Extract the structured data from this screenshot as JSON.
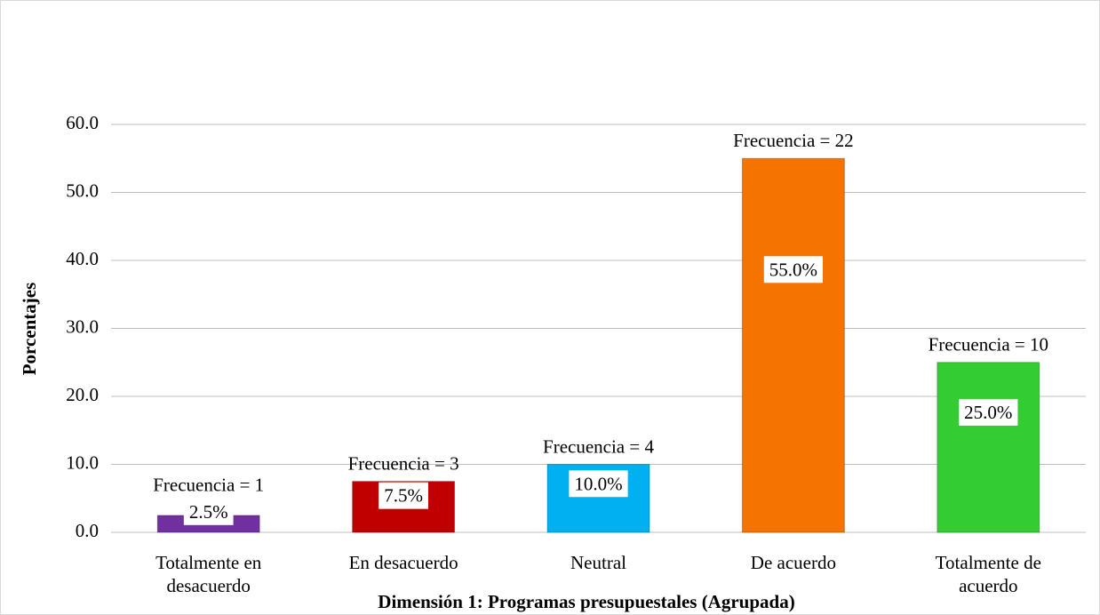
{
  "chart_data": {
    "type": "bar",
    "y_axis_label": "Porcentajes",
    "x_axis_label": "Dimensión 1: Programas presupuestales (Agrupada)",
    "categories": [
      "Totalmente en desacuerdo",
      "En desacuerdo",
      "Neutral",
      "De acuerdo",
      "Totalmente de acuerdo"
    ],
    "values": [
      2.5,
      7.5,
      10,
      55,
      25
    ],
    "value_labels": [
      "2.5%",
      "7.5%",
      "10.0%",
      "55.0%",
      "25.0%"
    ],
    "annotations": [
      "Frecuencia = 1",
      "Frecuencia = 3",
      "Frecuencia = 4",
      "Frecuencia = 22",
      "Frecuencia = 10"
    ],
    "colors": [
      "#7030a0",
      "#c00000",
      "#00b0f0",
      "#f57300",
      "#33cc33"
    ],
    "ylim": [
      0,
      60
    ],
    "yticks": [
      {
        "value": 0,
        "label": "0.0"
      },
      {
        "value": 10,
        "label": "10.0"
      },
      {
        "value": 20,
        "label": "20.0"
      },
      {
        "value": 30,
        "label": "30.0"
      },
      {
        "value": 40,
        "label": "40.0"
      },
      {
        "value": 50,
        "label": "50.0"
      },
      {
        "value": 60,
        "label": "60.0"
      }
    ],
    "grid": true
  }
}
